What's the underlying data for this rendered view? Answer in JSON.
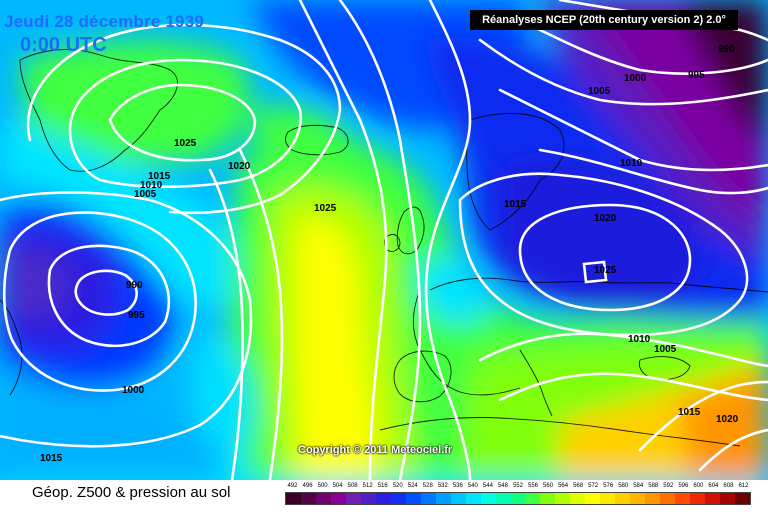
{
  "header": {
    "date": "Jeudi 28 décembre 1939",
    "time": "0:00 UTC",
    "source": "Réanalyses NCEP (20th century version 2) 2.0°"
  },
  "copyright": "Copyright © 2011 Meteociel.fr",
  "footer": {
    "title": "Géop. Z500 & pression au sol"
  },
  "legend": {
    "labels": [
      "492",
      "496",
      "500",
      "504",
      "508",
      "512",
      "516",
      "520",
      "524",
      "528",
      "532",
      "536",
      "540",
      "544",
      "548",
      "552",
      "556",
      "560",
      "564",
      "568",
      "572",
      "576",
      "580",
      "584",
      "588",
      "592",
      "596",
      "600",
      "604",
      "608",
      "612"
    ],
    "colors": [
      "#3a0028",
      "#560046",
      "#72006e",
      "#8a0096",
      "#7020b0",
      "#4f1fc8",
      "#2a1ee0",
      "#1030f0",
      "#0050ff",
      "#0078ff",
      "#00a0ff",
      "#00c4ff",
      "#00e4ff",
      "#00ffe0",
      "#00ffb0",
      "#10ff80",
      "#40ff40",
      "#80ff10",
      "#b0ff00",
      "#e0ff00",
      "#ffff00",
      "#ffe800",
      "#ffd000",
      "#ffb400",
      "#ff9400",
      "#ff7000",
      "#ff4c00",
      "#f02800",
      "#d01000",
      "#a80000",
      "#700000"
    ]
  },
  "isobars": {
    "labels": [
      "990",
      "1000",
      "995",
      "1005",
      "1010",
      "1025",
      "1020",
      "1015",
      "1010",
      "1005",
      "1025",
      "1020",
      "990",
      "995",
      "1000",
      "1015",
      "1020",
      "1025",
      "1010",
      "1005",
      "1015",
      "1020",
      "1015"
    ]
  }
}
